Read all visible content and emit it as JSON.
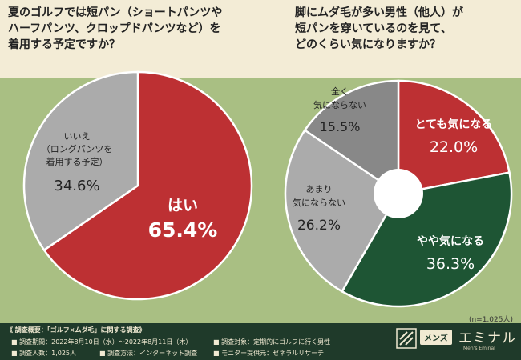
{
  "questions": {
    "q1": "夏のゴルフでは短パン（ショートパンツや\nハーフパンツ、クロップドパンツなど）を\n着用する予定ですか？",
    "q2": "脚にムダ毛が多い男性（他人）が\n短パンを穿いているのを見て、\nどのくらい気になりますか？"
  },
  "chart_data": [
    {
      "type": "pie",
      "title": "夏のゴルフでは短パン（ショートパンツやハーフパンツ、クロップドパンツなど）を着用する予定ですか？",
      "slices": [
        {
          "label": "はい",
          "value": 65.4,
          "display": "65.4%",
          "color": "#bd3033"
        },
        {
          "label": "いいえ（ロングパンツを着用する予定）",
          "value": 34.6,
          "display": "34.6%",
          "color": "#ababab"
        }
      ]
    },
    {
      "type": "pie",
      "title": "脚にムダ毛が多い男性（他人）が短パンを穿いているのを見て、どのくらい気になりますか？",
      "slices": [
        {
          "label": "とても気になる",
          "value": 22.0,
          "display": "22.0%",
          "color": "#bd3033"
        },
        {
          "label": "やや気になる",
          "value": 36.3,
          "display": "36.3%",
          "color": "#1e5534"
        },
        {
          "label": "あまり気にならない",
          "value": 26.2,
          "display": "26.2%",
          "color": "#ababab"
        },
        {
          "label": "全く気にならない",
          "value": 15.5,
          "display": "15.5%",
          "color": "#888888"
        }
      ],
      "note": "(n=1,025人)"
    }
  ],
  "labels": {
    "c1_yes": "はい",
    "c1_yes_val": "65.4%",
    "c1_no_l1": "いいえ",
    "c1_no_l2": "（ロングパンツを",
    "c1_no_l3": "着用する予定）",
    "c1_no_val": "34.6%",
    "c2_very": "とても気になる",
    "c2_very_val": "22.0%",
    "c2_some": "やや気になる",
    "c2_some_val": "36.3%",
    "c2_little_l1": "あまり",
    "c2_little_l2": "気にならない",
    "c2_little_val": "26.2%",
    "c2_none_l1": "全く",
    "c2_none_l2": "気にならない",
    "c2_none_val": "15.5%"
  },
  "sample_note": "(n=1,025人)",
  "footer": {
    "summary_title": "《 調査概要：「ゴルフ×ムダ毛」に関する調査》",
    "period": "■ 調査期間：2022年8月10日（水）〜2022年8月11日（木）",
    "target": "■ 調査対象：定期的にゴルフに行く男性",
    "count": "■ 調査人数：1,025人",
    "method": "■ 調査方法：インターネット調査",
    "monitor": "■ モニター提供元：ゼネラルリサーチ"
  },
  "brand": {
    "pill": "メンズ",
    "name": "エミナル",
    "sub": "Men's Eminal"
  },
  "colors": {
    "top_band": "#f3ecd6",
    "background": "#a9bf83",
    "footer": "#1f3a2a"
  }
}
